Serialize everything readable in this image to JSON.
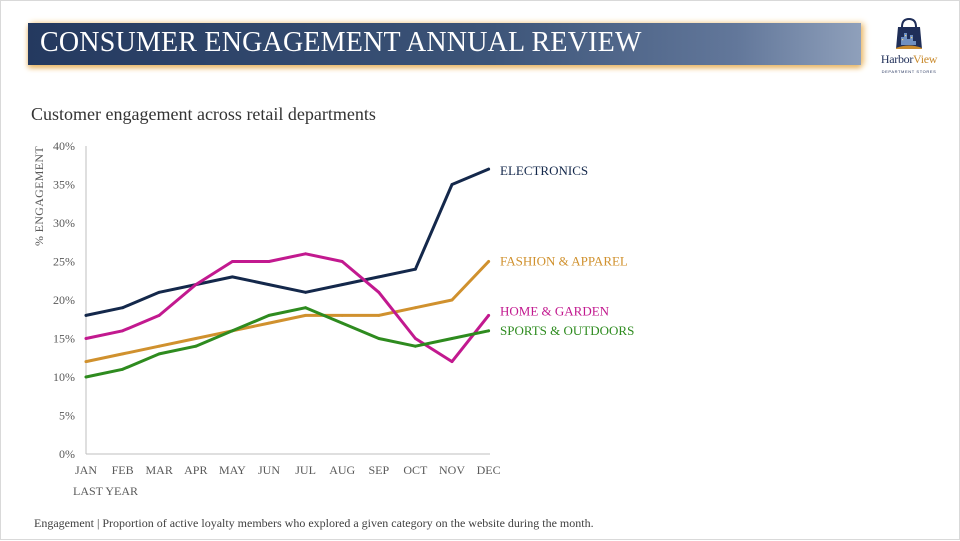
{
  "header": {
    "title": "CONSUMER ENGAGEMENT ANNUAL REVIEW",
    "logo_text": "HarborView",
    "logo_text_a": "Harbor",
    "logo_text_b": "View",
    "logo_subtext": "DEPARTMENT STORES"
  },
  "footnote": "Engagement | Proportion of active loyalty members who explored a given category on the website during the month.",
  "colors": {
    "electronics": "#14284b",
    "fashion": "#d0912e",
    "home": "#c2198f",
    "sports": "#2e8b1f",
    "axis": "#bfbfbf"
  },
  "chart_data": {
    "type": "line",
    "title": "Customer engagement across retail departments",
    "xlabel": "LAST YEAR",
    "ylabel": "% ENGAGEMENT",
    "categories": [
      "JAN",
      "FEB",
      "MAR",
      "APR",
      "MAY",
      "JUN",
      "JUL",
      "AUG",
      "SEP",
      "OCT",
      "NOV",
      "DEC"
    ],
    "ylim": [
      0,
      40
    ],
    "yticks": [
      0,
      5,
      10,
      15,
      20,
      25,
      30,
      35,
      40
    ],
    "ytick_labels": [
      "0%",
      "5%",
      "10%",
      "15%",
      "20%",
      "25%",
      "30%",
      "35%",
      "40%"
    ],
    "grid": false,
    "legend": "direct labels at line ends",
    "series": [
      {
        "name": "ELECTRONICS",
        "color_key": "electronics",
        "values": [
          18,
          19,
          21,
          22,
          23,
          22,
          21,
          22,
          23,
          24,
          35,
          37
        ]
      },
      {
        "name": "FASHION & APPAREL",
        "color_key": "fashion",
        "values": [
          12,
          13,
          14,
          15,
          16,
          17,
          18,
          18,
          18,
          19,
          20,
          25
        ]
      },
      {
        "name": "HOME & GARDEN",
        "color_key": "home",
        "values": [
          15,
          16,
          18,
          22,
          25,
          25,
          26,
          25,
          21,
          15,
          12,
          18
        ]
      },
      {
        "name": "SPORTS & OUTDOORS",
        "color_key": "sports",
        "values": [
          10,
          11,
          13,
          14,
          16,
          18,
          19,
          17,
          15,
          14,
          15,
          16
        ]
      }
    ]
  }
}
